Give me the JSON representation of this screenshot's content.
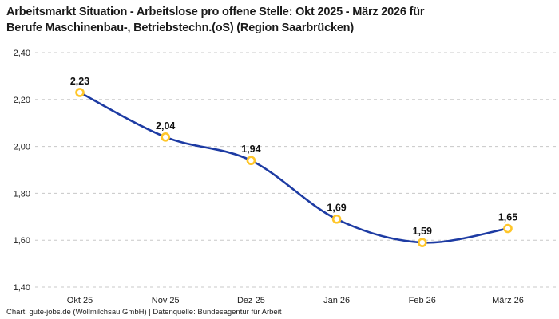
{
  "title": "Arbeitsmarkt Situation - Arbeitslose pro offene Stelle: Okt 2025 - März 2026 für Berufe Maschinenbau-, Betriebstechn.(oS) (Region Saarbrücken)",
  "title_lines": [
    "Arbeitsmarkt Situation - Arbeitslose pro offene Stelle: Okt 2025 - März 2026 für",
    "Berufe Maschinenbau-, Betriebstechn.(oS) (Region Saarbrücken)"
  ],
  "footer": "Chart: gute-jobs.de (Wollmilchsau GmbH) | Datenquelle: Bundesagentur für Arbeit",
  "colors": {
    "line": "#1d3ba3",
    "marker_ring": "#ffc629",
    "marker_fill": "#ffffff",
    "grid": "#c8c8c8",
    "title_text": "#1a1a1a",
    "axis_text": "#222222",
    "label_text": "#111111"
  },
  "chart_data": {
    "type": "line",
    "title": "Arbeitsmarkt Situation - Arbeitslose pro offene Stelle: Okt 2025 - März 2026 für Berufe Maschinenbau-, Betriebstechn.(oS) (Region Saarbrücken)",
    "categories": [
      "Okt 25",
      "Nov 25",
      "Dez 25",
      "Jan 26",
      "Feb 26",
      "März 26"
    ],
    "values": [
      2.23,
      2.04,
      1.94,
      1.69,
      1.59,
      1.65
    ],
    "value_labels": [
      "2,23",
      "2,04",
      "1,94",
      "1,69",
      "1,59",
      "1,65"
    ],
    "y_tick_values": [
      2.4,
      2.2,
      2.0,
      1.8,
      1.6,
      1.4
    ],
    "y_tick_labels": [
      "2,40",
      "2,20",
      "2,00",
      "1,80",
      "1,60",
      "1,40"
    ],
    "ylim": [
      1.4,
      2.4
    ],
    "xlabel": "",
    "ylabel": "",
    "grid": "horizontal-dashed",
    "legend": "none",
    "line_style": "smooth",
    "marker": "open-circle"
  }
}
